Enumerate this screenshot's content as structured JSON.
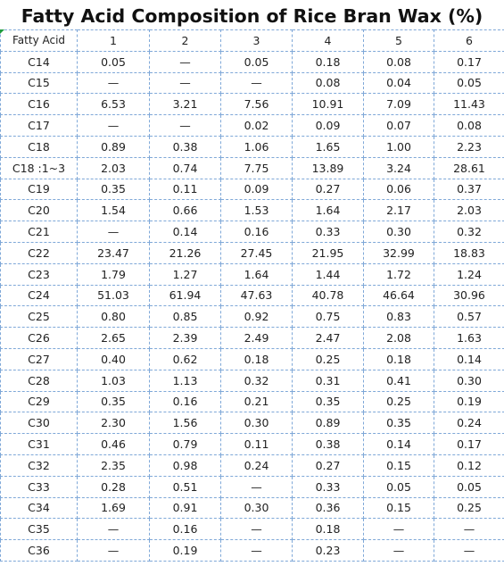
{
  "title": "Fatty Acid Composition of Rice Bran Wax (%)",
  "columns": [
    "Fatty Acid",
    "1",
    "2",
    "3",
    "4",
    "5",
    "6"
  ],
  "rows": [
    [
      "C14",
      "0.05",
      "—",
      "0.05",
      "0.18",
      "0.08",
      "0.17"
    ],
    [
      "C15",
      "—",
      "—",
      "—",
      "0.08",
      "0.04",
      "0.05"
    ],
    [
      "C16",
      "6.53",
      "3.21",
      "7.56",
      "10.91",
      "7.09",
      "11.43"
    ],
    [
      "C17",
      "—",
      "—",
      "0.02",
      "0.09",
      "0.07",
      "0.08"
    ],
    [
      "C18",
      "0.89",
      "0.38",
      "1.06",
      "1.65",
      "1.00",
      "2.23"
    ],
    [
      "C18 :1~3",
      "2.03",
      "0.74",
      "7.75",
      "13.89",
      "3.24",
      "28.61"
    ],
    [
      "C19",
      "0.35",
      "0.11",
      "0.09",
      "0.27",
      "0.06",
      "0.37"
    ],
    [
      "C20",
      "1.54",
      "0.66",
      "1.53",
      "1.64",
      "2.17",
      "2.03"
    ],
    [
      "C21",
      "—",
      "0.14",
      "0.16",
      "0.33",
      "0.30",
      "0.32"
    ],
    [
      "C22",
      "23.47",
      "21.26",
      "27.45",
      "21.95",
      "32.99",
      "18.83"
    ],
    [
      "C23",
      "1.79",
      "1.27",
      "1.64",
      "1.44",
      "1.72",
      "1.24"
    ],
    [
      "C24",
      "51.03",
      "61.94",
      "47.63",
      "40.78",
      "46.64",
      "30.96"
    ],
    [
      "C25",
      "0.80",
      "0.85",
      "0.92",
      "0.75",
      "0.83",
      "0.57"
    ],
    [
      "C26",
      "2.65",
      "2.39",
      "2.49",
      "2.47",
      "2.08",
      "1.63"
    ],
    [
      "C27",
      "0.40",
      "0.62",
      "0.18",
      "0.25",
      "0.18",
      "0.14"
    ],
    [
      "C28",
      "1.03",
      "1.13",
      "0.32",
      "0.31",
      "0.41",
      "0.30"
    ],
    [
      "C29",
      "0.35",
      "0.16",
      "0.21",
      "0.35",
      "0.25",
      "0.19"
    ],
    [
      "C30",
      "2.30",
      "1.56",
      "0.30",
      "0.89",
      "0.35",
      "0.24"
    ],
    [
      "C31",
      "0.46",
      "0.79",
      "0.11",
      "0.38",
      "0.14",
      "0.17"
    ],
    [
      "C32",
      "2.35",
      "0.98",
      "0.24",
      "0.27",
      "0.15",
      "0.12"
    ],
    [
      "C33",
      "0.28",
      "0.51",
      "—",
      "0.33",
      "0.05",
      "0.05"
    ],
    [
      "C34",
      "1.69",
      "0.91",
      "0.30",
      "0.36",
      "0.15",
      "0.25"
    ],
    [
      "C35",
      "—",
      "0.16",
      "—",
      "0.18",
      "—",
      "—"
    ],
    [
      "C36",
      "—",
      "0.19",
      "—",
      "0.23",
      "—",
      "—"
    ]
  ],
  "colors": {
    "gridline": "#7fa8d8",
    "corner_marker": "#1e9c3c"
  }
}
